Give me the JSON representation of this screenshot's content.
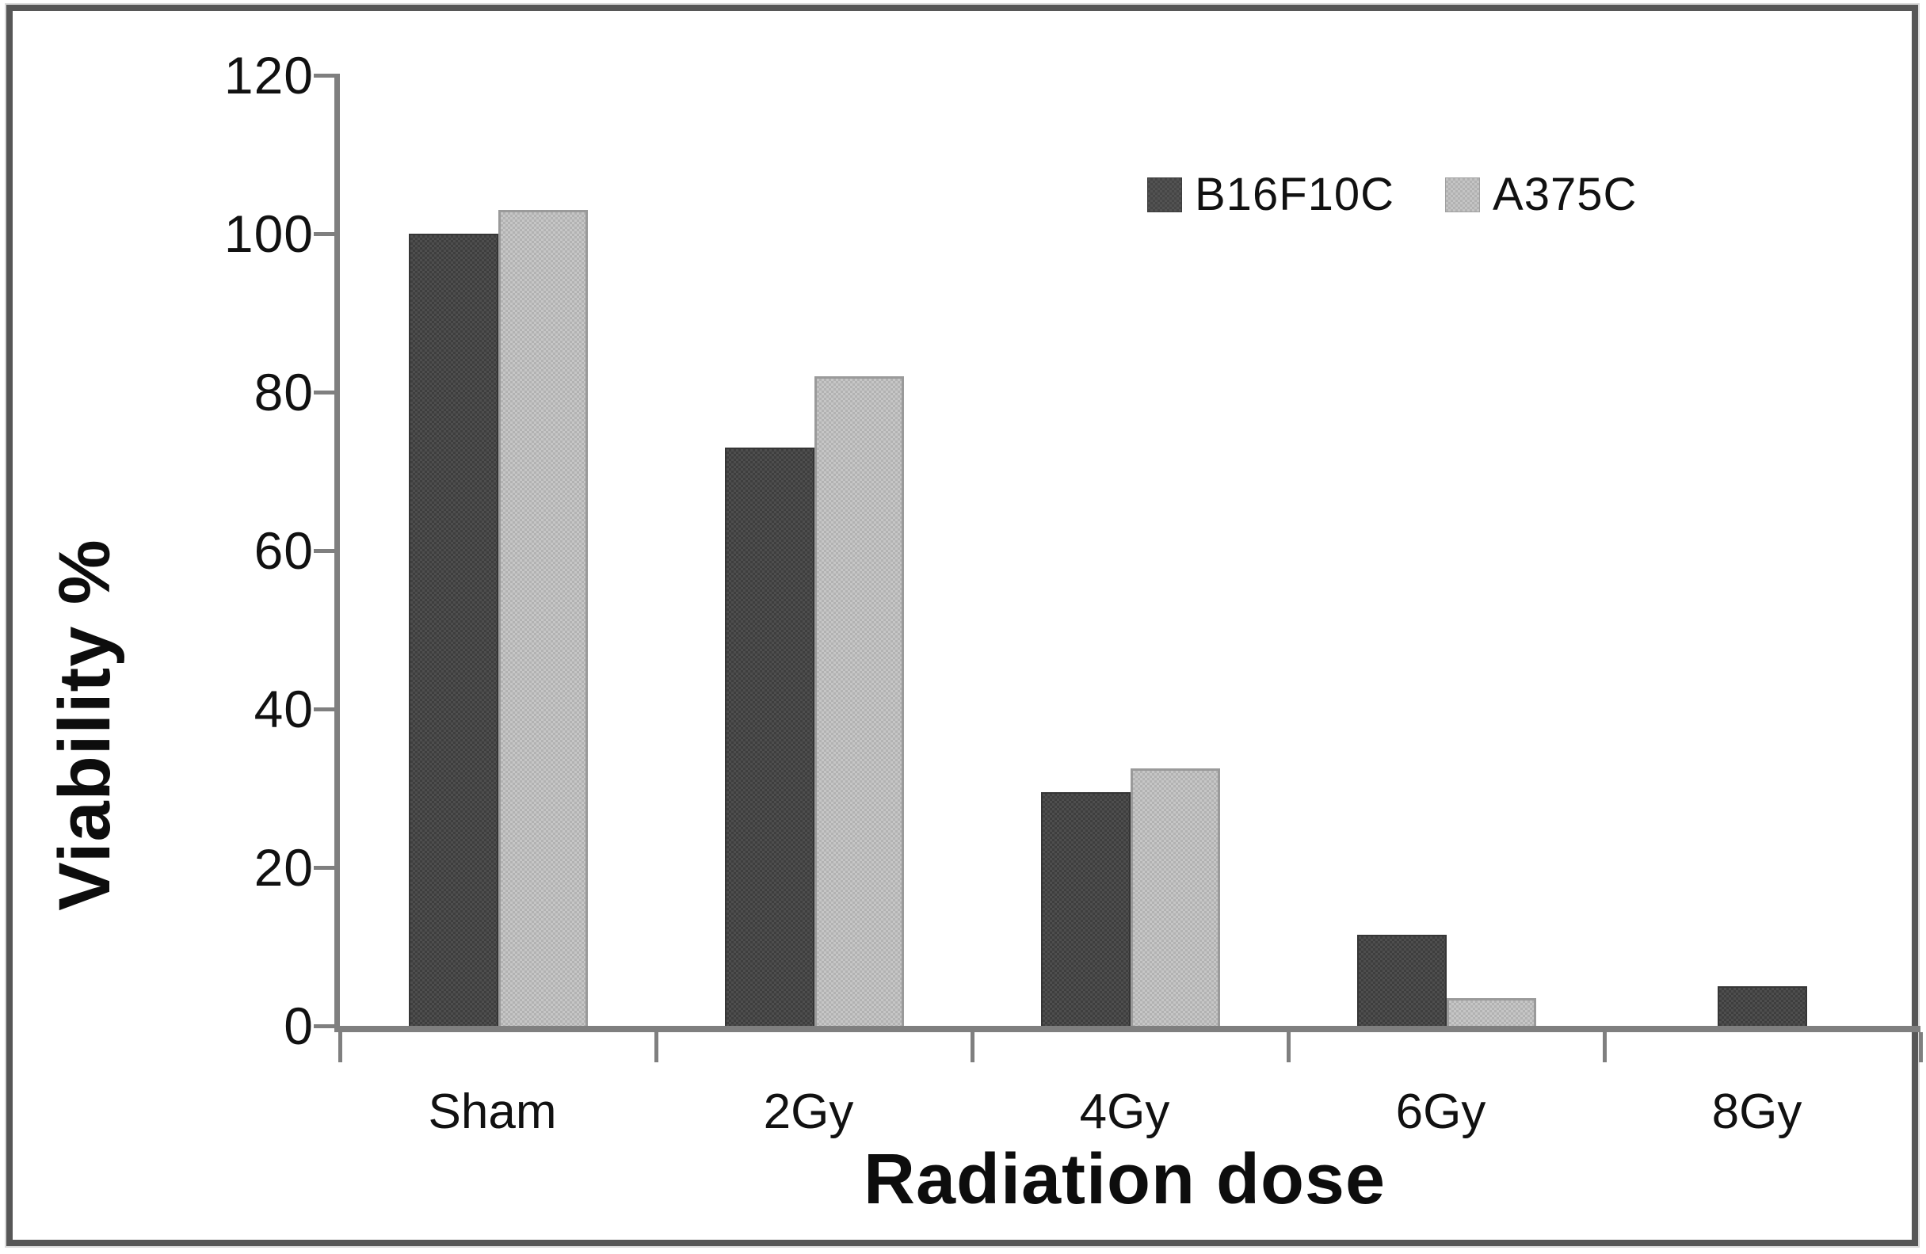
{
  "figure": {
    "background": "#ffffff",
    "border_color": "#575757",
    "axis_color": "#7f7f7f",
    "text_color": "#111111",
    "series_colors": {
      "B16F10C": "#464646",
      "A375C": "#bcbcbc"
    }
  },
  "chart_data": {
    "type": "bar",
    "categories": [
      "Sham",
      "2Gy",
      "4Gy",
      "6Gy",
      "8Gy"
    ],
    "series": [
      {
        "name": "B16F10C",
        "color": "#464646",
        "values": [
          100,
          73,
          29.5,
          11.5,
          5
        ]
      },
      {
        "name": "A375C",
        "color": "#bcbcbc",
        "values": [
          103,
          82,
          32.5,
          3.5,
          0
        ]
      }
    ],
    "title": "",
    "xlabel": "Radiation dose",
    "ylabel": "Viability %",
    "ylim": [
      0,
      120
    ],
    "yticks": [
      0,
      20,
      40,
      60,
      80,
      100,
      120
    ],
    "grid": false,
    "legend_position": "top-right"
  }
}
